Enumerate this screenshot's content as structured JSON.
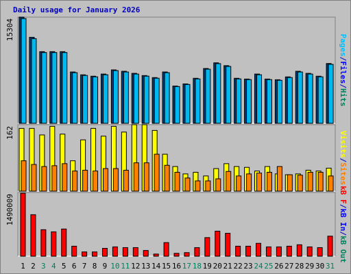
{
  "chart_data": [
    {
      "type": "bar",
      "title": "Daily usage for January 2026",
      "ylim": [
        0,
        15304
      ],
      "yticks": [
        15304
      ],
      "side_label": [
        {
          "text": "Pages",
          "color": "#00c0ff"
        },
        {
          "text": "/",
          "color": "#0000c0"
        },
        {
          "text": "Files",
          "color": "#0000ff"
        },
        {
          "text": "/",
          "color": "#0000c0"
        },
        {
          "text": "Hits",
          "color": "#00805c"
        }
      ],
      "series": [
        {
          "color": "#003c78",
          "values": [
            15304,
            12400,
            10330,
            10330,
            10330,
            7400,
            6990,
            6790,
            7100,
            7700,
            7500,
            7200,
            6880,
            6590,
            7400,
            5370,
            5680,
            6490,
            7900,
            8720,
            8310,
            6490,
            6380,
            7100,
            6380,
            6280,
            6690,
            7500,
            7200,
            6790,
            8620
          ]
        },
        {
          "color": "#00b8f0",
          "values": [
            15100,
            12200,
            10200,
            10200,
            10200,
            7300,
            6900,
            6700,
            7000,
            7600,
            7400,
            7100,
            6800,
            6500,
            7300,
            5300,
            5600,
            6400,
            7800,
            8600,
            8200,
            6400,
            6300,
            7000,
            6300,
            6200,
            6600,
            7400,
            7100,
            6700,
            8500
          ]
        }
      ]
    },
    {
      "type": "bar",
      "ylim": [
        0,
        162
      ],
      "yticks": [
        162
      ],
      "side_label": [
        {
          "text": "Visits",
          "color": "#ffff00"
        },
        {
          "text": "/",
          "color": "#0000c0"
        },
        {
          "text": "Sites",
          "color": "#ff8000"
        }
      ],
      "series": [
        {
          "color": "#ffff00",
          "values": [
            153,
            153,
            137,
            158,
            139,
            74,
            125,
            153,
            134,
            158,
            144,
            162,
            162,
            148,
            90,
            60,
            42,
            46,
            37,
            55,
            67,
            60,
            58,
            49,
            60,
            42,
            40,
            42,
            51,
            49,
            56
          ]
        },
        {
          "color": "#ff8000",
          "values": [
            74,
            65,
            60,
            62,
            67,
            49,
            51,
            49,
            55,
            55,
            51,
            69,
            69,
            90,
            63,
            46,
            32,
            25,
            25,
            30,
            48,
            37,
            42,
            44,
            46,
            60,
            40,
            39,
            46,
            46,
            37
          ]
        }
      ]
    },
    {
      "type": "bar",
      "ylim": [
        0,
        1490009
      ],
      "yticks": [
        1490009
      ],
      "side_label": [
        {
          "text": "kB F",
          "color": "#ff0000"
        },
        {
          "text": "/",
          "color": "#0000c0"
        },
        {
          "text": "kB In",
          "color": "#0000ff"
        },
        {
          "text": "/",
          "color": "#0000c0"
        },
        {
          "text": "kB Out",
          "color": "#00805c"
        }
      ],
      "categories": [
        "1",
        "2",
        "3",
        "4",
        "5",
        "6",
        "7",
        "8",
        "9",
        "10",
        "11",
        "12",
        "13",
        "14",
        "15",
        "16",
        "17",
        "18",
        "19",
        "20",
        "21",
        "22",
        "23",
        "24",
        "25",
        "26",
        "27",
        "28",
        "29",
        "30",
        "31"
      ],
      "category_colors": [
        "#000000",
        "#000000",
        "#00805c",
        "#00805c",
        "#000000",
        "#000000",
        "#000000",
        "#000000",
        "#000000",
        "#00805c",
        "#00805c",
        "#000000",
        "#000000",
        "#000000",
        "#000000",
        "#000000",
        "#00805c",
        "#00805c",
        "#000000",
        "#000000",
        "#000000",
        "#000000",
        "#000000",
        "#00805c",
        "#00805c",
        "#000000",
        "#000000",
        "#000000",
        "#000000",
        "#000000",
        "#00805c"
      ],
      "series": [
        {
          "color": "#ff0000",
          "values": [
            1473000,
            971000,
            620000,
            570000,
            636000,
            234000,
            100000,
            100000,
            184000,
            218000,
            201000,
            201000,
            134000,
            50000,
            318000,
            67000,
            84000,
            201000,
            435000,
            586000,
            536000,
            234000,
            234000,
            301000,
            218000,
            218000,
            234000,
            268000,
            218000,
            201000,
            469000
          ]
        }
      ]
    }
  ]
}
